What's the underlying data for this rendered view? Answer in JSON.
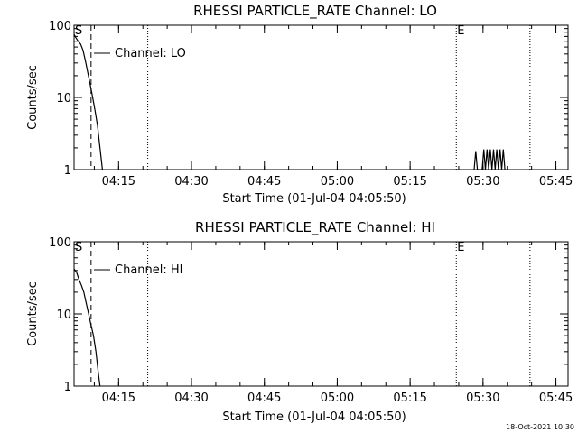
{
  "timestamp": "18-Oct-2021 10:30",
  "colors": {
    "background": "#ffffff",
    "foreground": "#000000"
  },
  "chart_data": [
    {
      "type": "line",
      "title": "RHESSI PARTICLE_RATE Channel: LO",
      "xlabel": "Start Time (01-Jul-04 04:05:50)",
      "ylabel": "Counts/sec",
      "yscale": "log",
      "ylim": [
        1,
        100
      ],
      "xlim": [
        "04:05:50",
        "05:47:30"
      ],
      "x_ticks": [
        "04:15",
        "04:30",
        "04:45",
        "05:00",
        "05:15",
        "05:30",
        "05:45"
      ],
      "y_ticks": [
        "1",
        "10",
        "100"
      ],
      "legend": "Channel: LO",
      "markers": [
        {
          "time": "04:09:20",
          "style": "dashed",
          "label": "S"
        },
        {
          "time": "04:21:00",
          "style": "dotted",
          "label": ""
        },
        {
          "time": "05:24:30",
          "style": "dotted",
          "label": "E"
        },
        {
          "time": "05:39:40",
          "style": "dotted",
          "label": ""
        }
      ],
      "series": [
        {
          "values": [
            [
              "04:05:50",
              75
            ],
            [
              "04:06:10",
              68
            ],
            [
              "04:06:40",
              60
            ],
            [
              "04:07:10",
              55
            ],
            [
              "04:07:40",
              45
            ],
            [
              "04:08:10",
              32
            ],
            [
              "04:08:40",
              22
            ],
            [
              "04:09:10",
              15
            ],
            [
              "04:09:40",
              10
            ],
            [
              "04:10:10",
              6.5
            ],
            [
              "04:10:40",
              4
            ],
            [
              "04:11:10",
              2
            ],
            [
              "04:11:40",
              1
            ]
          ]
        },
        {
          "values": [
            [
              "05:28:10",
              1
            ],
            [
              "05:28:30",
              1.8
            ],
            [
              "05:28:50",
              1
            ],
            [
              "05:29:50",
              1
            ],
            [
              "05:30:10",
              1.9
            ],
            [
              "05:30:30",
              1
            ],
            [
              "05:30:50",
              1.9
            ],
            [
              "05:31:10",
              1
            ],
            [
              "05:31:30",
              1.9
            ],
            [
              "05:31:50",
              1
            ],
            [
              "05:32:10",
              1.9
            ],
            [
              "05:32:30",
              1
            ],
            [
              "05:32:50",
              1.9
            ],
            [
              "05:33:10",
              1
            ],
            [
              "05:33:30",
              1.9
            ],
            [
              "05:33:50",
              1
            ],
            [
              "05:34:10",
              1.9
            ],
            [
              "05:34:30",
              1
            ]
          ]
        }
      ]
    },
    {
      "type": "line",
      "title": "RHESSI PARTICLE_RATE Channel: HI",
      "xlabel": "Start Time (01-Jul-04 04:05:50)",
      "ylabel": "Counts/sec",
      "yscale": "log",
      "ylim": [
        1,
        100
      ],
      "xlim": [
        "04:05:50",
        "05:47:30"
      ],
      "x_ticks": [
        "04:15",
        "04:30",
        "04:45",
        "05:00",
        "05:15",
        "05:30",
        "05:45"
      ],
      "y_ticks": [
        "1",
        "10",
        "100"
      ],
      "legend": "Channel: HI",
      "markers": [
        {
          "time": "04:09:20",
          "style": "dashed",
          "label": "S"
        },
        {
          "time": "04:21:00",
          "style": "dotted",
          "label": ""
        },
        {
          "time": "05:24:30",
          "style": "dotted",
          "label": "E"
        },
        {
          "time": "05:39:40",
          "style": "dotted",
          "label": ""
        }
      ],
      "series": [
        {
          "values": [
            [
              "04:05:50",
              42
            ],
            [
              "04:06:20",
              38
            ],
            [
              "04:06:50",
              30
            ],
            [
              "04:07:20",
              25
            ],
            [
              "04:07:50",
              20
            ],
            [
              "04:08:20",
              14
            ],
            [
              "04:08:50",
              10
            ],
            [
              "04:09:20",
              7
            ],
            [
              "04:09:50",
              5
            ],
            [
              "04:10:20",
              3
            ],
            [
              "04:10:50",
              1.5
            ],
            [
              "04:11:10",
              1
            ]
          ]
        }
      ]
    }
  ]
}
